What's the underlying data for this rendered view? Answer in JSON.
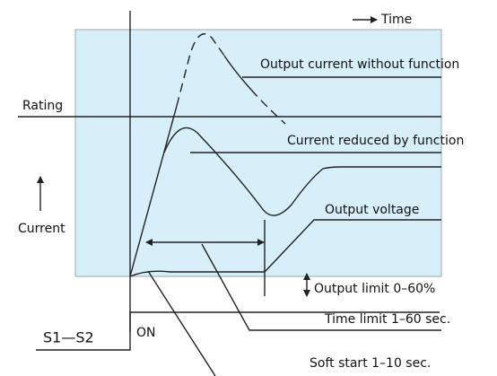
{
  "labels": {
    "time": "Time",
    "output_current_without_function": "Output current without function",
    "rating": "Rating",
    "current_reduced_by_function": "Current reduced by function",
    "current": "Current",
    "output_voltage": "Output voltage",
    "output_limit": "Output limit 0–60%",
    "time_limit": "Time limit 1–60 sec.",
    "soft_start": "Soft start 1–10 sec.",
    "signal": "S1—S2",
    "on": "ON"
  }
}
